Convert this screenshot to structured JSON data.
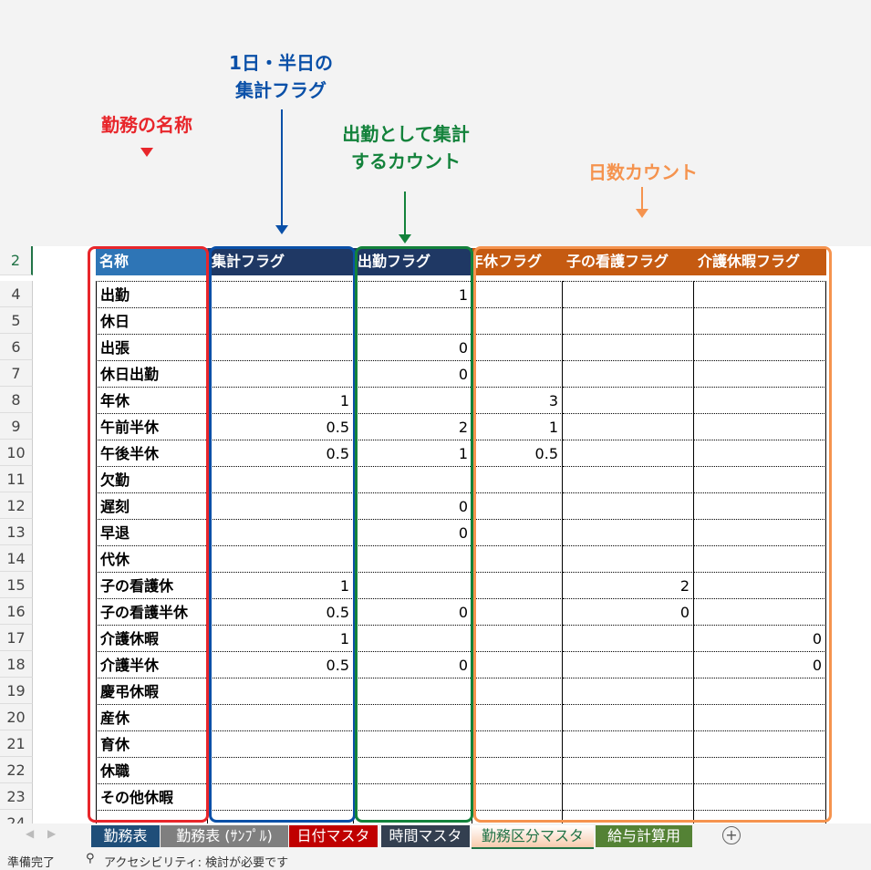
{
  "annotations": [
    {
      "text": "勤務の名称",
      "color": "#e8262b"
    },
    {
      "text": "1日・半日の\n集計フラグ",
      "color": "#0a50a8"
    },
    {
      "text": "出勤として集計\nするカウント",
      "color": "#13823b"
    },
    {
      "text": "日数カウント",
      "color": "#f5934e"
    }
  ],
  "sheet": {
    "header_row_number": "2",
    "headers": [
      "名称",
      "集計フラグ",
      "出勤フラグ",
      "年休フラグ",
      "子の看護フラグ",
      "介護休暇フラグ"
    ],
    "header_colors": [
      "#2e75b6",
      "#1f3864",
      "#1f3864",
      "#c55a11",
      "#c55a11",
      "#c55a11"
    ],
    "rows": [
      {
        "n": "4",
        "name": "出勤",
        "v": [
          "",
          "1",
          "",
          "",
          ""
        ]
      },
      {
        "n": "5",
        "name": "休日",
        "v": [
          "",
          "",
          "",
          "",
          ""
        ]
      },
      {
        "n": "6",
        "name": "出張",
        "v": [
          "",
          "0",
          "",
          "",
          ""
        ]
      },
      {
        "n": "7",
        "name": "休日出勤",
        "v": [
          "",
          "0",
          "",
          "",
          ""
        ]
      },
      {
        "n": "8",
        "name": "年休",
        "v": [
          "1",
          "",
          "3",
          "",
          ""
        ]
      },
      {
        "n": "9",
        "name": "午前半休",
        "v": [
          "0.5",
          "2",
          "1",
          "",
          ""
        ]
      },
      {
        "n": "10",
        "name": "午後半休",
        "v": [
          "0.5",
          "1",
          "0.5",
          "",
          ""
        ]
      },
      {
        "n": "11",
        "name": "欠勤",
        "v": [
          "",
          "",
          "",
          "",
          ""
        ]
      },
      {
        "n": "12",
        "name": "遅刻",
        "v": [
          "",
          "0",
          "",
          "",
          ""
        ]
      },
      {
        "n": "13",
        "name": "早退",
        "v": [
          "",
          "0",
          "",
          "",
          ""
        ]
      },
      {
        "n": "14",
        "name": "代休",
        "v": [
          "",
          "",
          "",
          "",
          ""
        ]
      },
      {
        "n": "15",
        "name": "子の看護休",
        "v": [
          "1",
          "",
          "",
          "2",
          ""
        ]
      },
      {
        "n": "16",
        "name": "子の看護半休",
        "v": [
          "0.5",
          "0",
          "",
          "0",
          ""
        ]
      },
      {
        "n": "17",
        "name": "介護休暇",
        "v": [
          "1",
          "",
          "",
          "",
          "0"
        ]
      },
      {
        "n": "18",
        "name": "介護半休",
        "v": [
          "0.5",
          "0",
          "",
          "",
          "0"
        ]
      },
      {
        "n": "19",
        "name": "慶弔休暇",
        "v": [
          "",
          "",
          "",
          "",
          ""
        ]
      },
      {
        "n": "20",
        "name": "産休",
        "v": [
          "",
          "",
          "",
          "",
          ""
        ]
      },
      {
        "n": "21",
        "name": "育休",
        "v": [
          "",
          "",
          "",
          "",
          ""
        ]
      },
      {
        "n": "22",
        "name": "休職",
        "v": [
          "",
          "",
          "",
          "",
          ""
        ]
      },
      {
        "n": "23",
        "name": "その他休暇",
        "v": [
          "",
          "",
          "",
          "",
          ""
        ]
      },
      {
        "n": "24",
        "name": "",
        "v": [
          "",
          "",
          "",
          "",
          ""
        ]
      }
    ]
  },
  "tabs": [
    {
      "label": "勤務表",
      "color": "#1f4e79",
      "active": false
    },
    {
      "label": "勤務表 (ｻﾝﾌﾟﾙ)",
      "color": "#7f7f7f",
      "active": false
    },
    {
      "label": "日付マスタ",
      "color": "#c00000",
      "active": false
    },
    {
      "label": "時間マスタ",
      "color": "#333f50",
      "active": false
    },
    {
      "label": "勤務区分マスタ",
      "color": "#f8cbad",
      "active": true
    },
    {
      "label": "給与計算用",
      "color": "#548235",
      "active": false
    }
  ],
  "add_sheet_icon": "plus-circle-icon",
  "status": {
    "ready": "準備完了",
    "accessibility": "アクセシビリティ: 検討が必要です"
  }
}
